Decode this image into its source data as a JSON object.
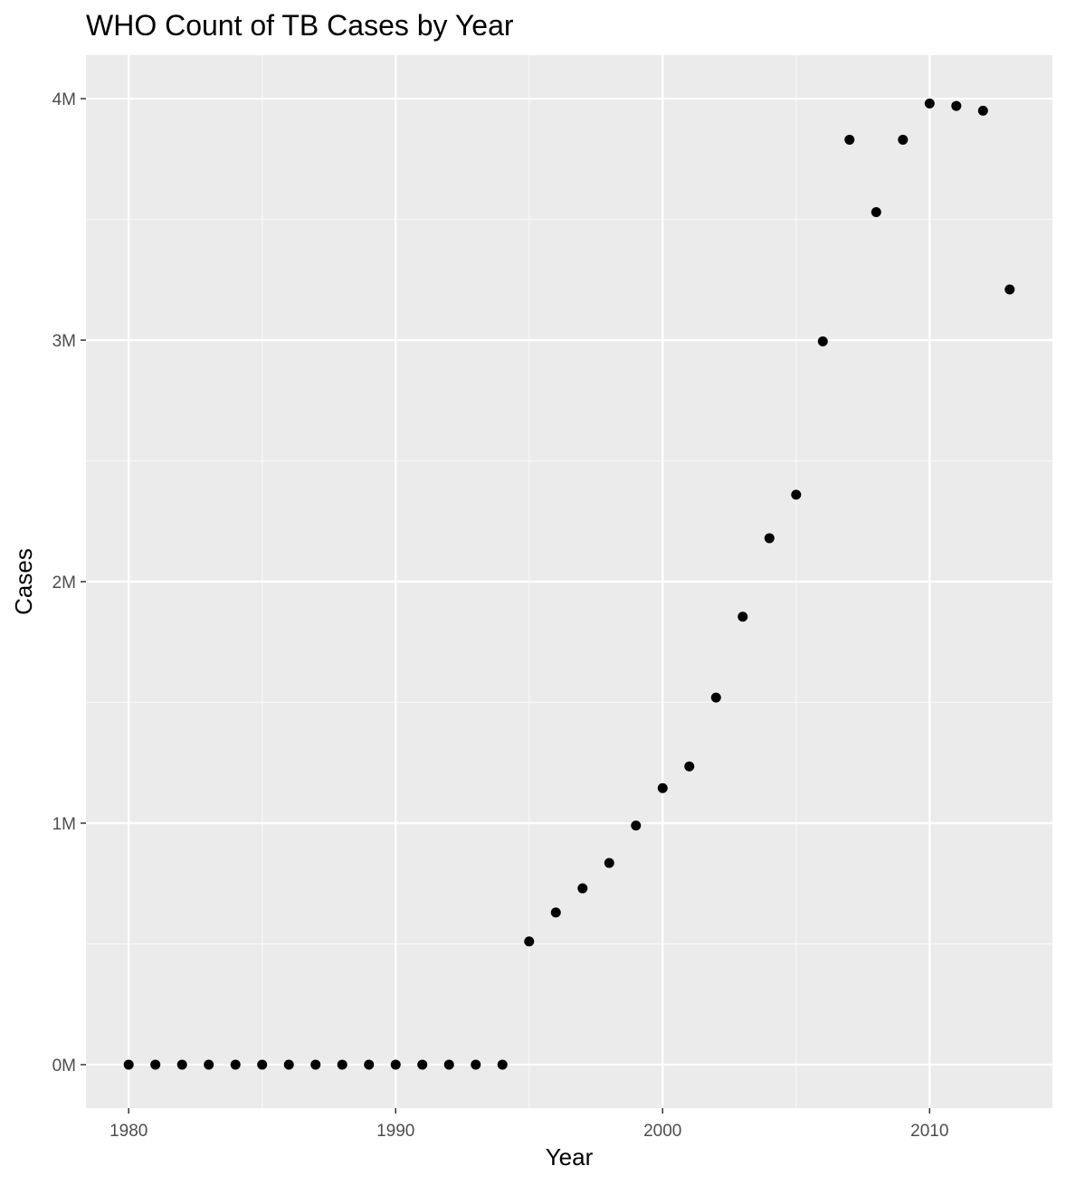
{
  "chart_data": {
    "type": "scatter",
    "title": "WHO Count of TB Cases by Year",
    "xlabel": "Year",
    "ylabel": "Cases",
    "xlim": [
      1978.4,
      2014.6
    ],
    "ylim": [
      -180000,
      4180000
    ],
    "x_ticks": [
      1980,
      1990,
      2000,
      2010
    ],
    "x_tick_labels": [
      "1980",
      "1990",
      "2000",
      "2010"
    ],
    "y_ticks": [
      0,
      1000000,
      2000000,
      3000000,
      4000000
    ],
    "y_tick_labels": [
      "0M",
      "1M",
      "2M",
      "3M",
      "4M"
    ],
    "grid": true,
    "legend": "none",
    "colors": {
      "panel_background": "#ebebeb",
      "grid_major": "#ffffff",
      "grid_minor": "#f7f7f7",
      "points": "#000000",
      "tick_marks": "#333333"
    },
    "x": [
      1980,
      1981,
      1982,
      1983,
      1984,
      1985,
      1986,
      1987,
      1988,
      1989,
      1990,
      1991,
      1992,
      1993,
      1994,
      1995,
      1996,
      1997,
      1998,
      1999,
      2000,
      2001,
      2002,
      2003,
      2004,
      2005,
      2006,
      2007,
      2008,
      2009,
      2010,
      2011,
      2012,
      2013
    ],
    "y": [
      0,
      0,
      0,
      0,
      0,
      0,
      0,
      0,
      0,
      0,
      0,
      0,
      0,
      0,
      0,
      510000,
      630000,
      730000,
      835000,
      990000,
      1145000,
      1235000,
      1520000,
      1855000,
      2180000,
      2360000,
      2995000,
      3830000,
      3530000,
      3830000,
      3980000,
      3970000,
      3950000,
      3210000
    ]
  }
}
